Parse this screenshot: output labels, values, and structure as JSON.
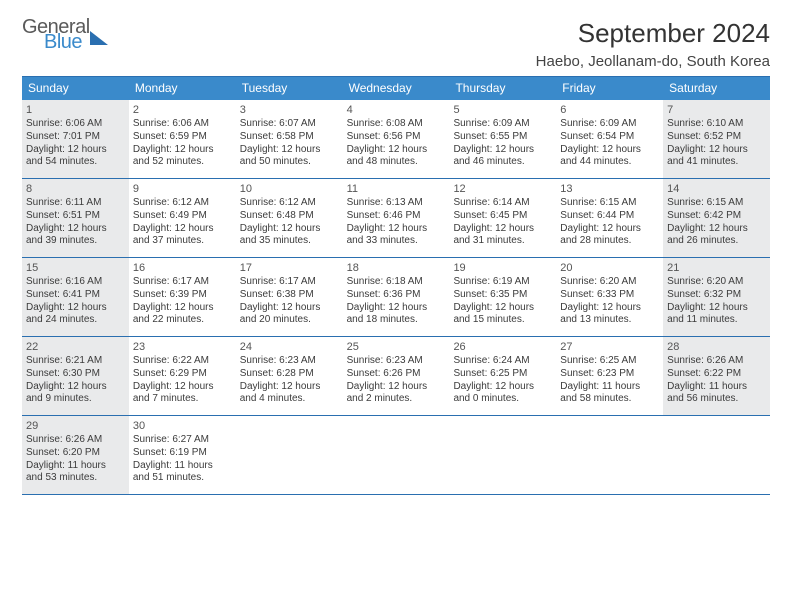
{
  "logo": {
    "line1": "General",
    "line2": "Blue"
  },
  "title": "September 2024",
  "location": "Haebo, Jeollanam-do, South Korea",
  "colors": {
    "header_bg": "#3a8acb",
    "rule": "#2a6fb0",
    "shade": "#e9eaeb",
    "text": "#3b3b3b",
    "page_bg": "#ffffff"
  },
  "dow": [
    "Sunday",
    "Monday",
    "Tuesday",
    "Wednesday",
    "Thursday",
    "Friday",
    "Saturday"
  ],
  "weeks": [
    [
      {
        "n": "1",
        "shaded": true,
        "sunrise": "Sunrise: 6:06 AM",
        "sunset": "Sunset: 7:01 PM",
        "day1": "Daylight: 12 hours",
        "day2": "and 54 minutes."
      },
      {
        "n": "2",
        "sunrise": "Sunrise: 6:06 AM",
        "sunset": "Sunset: 6:59 PM",
        "day1": "Daylight: 12 hours",
        "day2": "and 52 minutes."
      },
      {
        "n": "3",
        "sunrise": "Sunrise: 6:07 AM",
        "sunset": "Sunset: 6:58 PM",
        "day1": "Daylight: 12 hours",
        "day2": "and 50 minutes."
      },
      {
        "n": "4",
        "sunrise": "Sunrise: 6:08 AM",
        "sunset": "Sunset: 6:56 PM",
        "day1": "Daylight: 12 hours",
        "day2": "and 48 minutes."
      },
      {
        "n": "5",
        "sunrise": "Sunrise: 6:09 AM",
        "sunset": "Sunset: 6:55 PM",
        "day1": "Daylight: 12 hours",
        "day2": "and 46 minutes."
      },
      {
        "n": "6",
        "sunrise": "Sunrise: 6:09 AM",
        "sunset": "Sunset: 6:54 PM",
        "day1": "Daylight: 12 hours",
        "day2": "and 44 minutes."
      },
      {
        "n": "7",
        "shaded": true,
        "sunrise": "Sunrise: 6:10 AM",
        "sunset": "Sunset: 6:52 PM",
        "day1": "Daylight: 12 hours",
        "day2": "and 41 minutes."
      }
    ],
    [
      {
        "n": "8",
        "shaded": true,
        "sunrise": "Sunrise: 6:11 AM",
        "sunset": "Sunset: 6:51 PM",
        "day1": "Daylight: 12 hours",
        "day2": "and 39 minutes."
      },
      {
        "n": "9",
        "sunrise": "Sunrise: 6:12 AM",
        "sunset": "Sunset: 6:49 PM",
        "day1": "Daylight: 12 hours",
        "day2": "and 37 minutes."
      },
      {
        "n": "10",
        "sunrise": "Sunrise: 6:12 AM",
        "sunset": "Sunset: 6:48 PM",
        "day1": "Daylight: 12 hours",
        "day2": "and 35 minutes."
      },
      {
        "n": "11",
        "sunrise": "Sunrise: 6:13 AM",
        "sunset": "Sunset: 6:46 PM",
        "day1": "Daylight: 12 hours",
        "day2": "and 33 minutes."
      },
      {
        "n": "12",
        "sunrise": "Sunrise: 6:14 AM",
        "sunset": "Sunset: 6:45 PM",
        "day1": "Daylight: 12 hours",
        "day2": "and 31 minutes."
      },
      {
        "n": "13",
        "sunrise": "Sunrise: 6:15 AM",
        "sunset": "Sunset: 6:44 PM",
        "day1": "Daylight: 12 hours",
        "day2": "and 28 minutes."
      },
      {
        "n": "14",
        "shaded": true,
        "sunrise": "Sunrise: 6:15 AM",
        "sunset": "Sunset: 6:42 PM",
        "day1": "Daylight: 12 hours",
        "day2": "and 26 minutes."
      }
    ],
    [
      {
        "n": "15",
        "shaded": true,
        "sunrise": "Sunrise: 6:16 AM",
        "sunset": "Sunset: 6:41 PM",
        "day1": "Daylight: 12 hours",
        "day2": "and 24 minutes."
      },
      {
        "n": "16",
        "sunrise": "Sunrise: 6:17 AM",
        "sunset": "Sunset: 6:39 PM",
        "day1": "Daylight: 12 hours",
        "day2": "and 22 minutes."
      },
      {
        "n": "17",
        "sunrise": "Sunrise: 6:17 AM",
        "sunset": "Sunset: 6:38 PM",
        "day1": "Daylight: 12 hours",
        "day2": "and 20 minutes."
      },
      {
        "n": "18",
        "sunrise": "Sunrise: 6:18 AM",
        "sunset": "Sunset: 6:36 PM",
        "day1": "Daylight: 12 hours",
        "day2": "and 18 minutes."
      },
      {
        "n": "19",
        "sunrise": "Sunrise: 6:19 AM",
        "sunset": "Sunset: 6:35 PM",
        "day1": "Daylight: 12 hours",
        "day2": "and 15 minutes."
      },
      {
        "n": "20",
        "sunrise": "Sunrise: 6:20 AM",
        "sunset": "Sunset: 6:33 PM",
        "day1": "Daylight: 12 hours",
        "day2": "and 13 minutes."
      },
      {
        "n": "21",
        "shaded": true,
        "sunrise": "Sunrise: 6:20 AM",
        "sunset": "Sunset: 6:32 PM",
        "day1": "Daylight: 12 hours",
        "day2": "and 11 minutes."
      }
    ],
    [
      {
        "n": "22",
        "shaded": true,
        "sunrise": "Sunrise: 6:21 AM",
        "sunset": "Sunset: 6:30 PM",
        "day1": "Daylight: 12 hours",
        "day2": "and 9 minutes."
      },
      {
        "n": "23",
        "sunrise": "Sunrise: 6:22 AM",
        "sunset": "Sunset: 6:29 PM",
        "day1": "Daylight: 12 hours",
        "day2": "and 7 minutes."
      },
      {
        "n": "24",
        "sunrise": "Sunrise: 6:23 AM",
        "sunset": "Sunset: 6:28 PM",
        "day1": "Daylight: 12 hours",
        "day2": "and 4 minutes."
      },
      {
        "n": "25",
        "sunrise": "Sunrise: 6:23 AM",
        "sunset": "Sunset: 6:26 PM",
        "day1": "Daylight: 12 hours",
        "day2": "and 2 minutes."
      },
      {
        "n": "26",
        "sunrise": "Sunrise: 6:24 AM",
        "sunset": "Sunset: 6:25 PM",
        "day1": "Daylight: 12 hours",
        "day2": "and 0 minutes."
      },
      {
        "n": "27",
        "sunrise": "Sunrise: 6:25 AM",
        "sunset": "Sunset: 6:23 PM",
        "day1": "Daylight: 11 hours",
        "day2": "and 58 minutes."
      },
      {
        "n": "28",
        "shaded": true,
        "sunrise": "Sunrise: 6:26 AM",
        "sunset": "Sunset: 6:22 PM",
        "day1": "Daylight: 11 hours",
        "day2": "and 56 minutes."
      }
    ],
    [
      {
        "n": "29",
        "shaded": true,
        "sunrise": "Sunrise: 6:26 AM",
        "sunset": "Sunset: 6:20 PM",
        "day1": "Daylight: 11 hours",
        "day2": "and 53 minutes."
      },
      {
        "n": "30",
        "sunrise": "Sunrise: 6:27 AM",
        "sunset": "Sunset: 6:19 PM",
        "day1": "Daylight: 11 hours",
        "day2": "and 51 minutes."
      },
      {
        "empty": true
      },
      {
        "empty": true
      },
      {
        "empty": true
      },
      {
        "empty": true
      },
      {
        "empty": true
      }
    ]
  ]
}
